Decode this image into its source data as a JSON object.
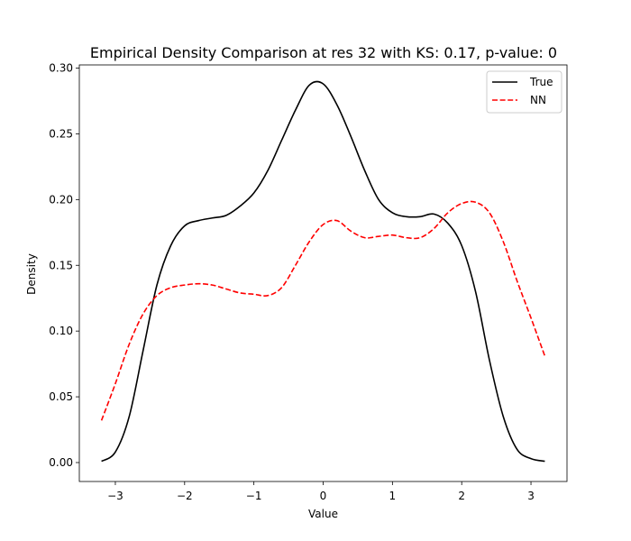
{
  "chart_data": {
    "type": "line",
    "title": "Empirical Density Comparison at res 32 with KS: 0.17, p-value: 0",
    "xlabel": "Value",
    "ylabel": "Density",
    "xlim": [
      -3.52,
      3.52
    ],
    "ylim": [
      -0.0144,
      0.3024
    ],
    "xticks": [
      -3,
      -2,
      -1,
      0,
      1,
      2,
      3
    ],
    "xtick_labels": [
      "−3",
      "−2",
      "−1",
      "0",
      "1",
      "2",
      "3"
    ],
    "yticks": [
      0.0,
      0.05,
      0.1,
      0.15,
      0.2,
      0.25,
      0.3
    ],
    "ytick_labels": [
      "0.00",
      "0.05",
      "0.10",
      "0.15",
      "0.20",
      "0.25",
      "0.30"
    ],
    "grid": false,
    "legend_position": "top-right",
    "series": [
      {
        "name": "True",
        "color": "#000000",
        "dash": "solid",
        "x": [
          -3.2,
          -3.0,
          -2.8,
          -2.6,
          -2.4,
          -2.2,
          -2.0,
          -1.8,
          -1.6,
          -1.4,
          -1.2,
          -1.0,
          -0.8,
          -0.6,
          -0.4,
          -0.2,
          0.0,
          0.2,
          0.4,
          0.6,
          0.8,
          1.0,
          1.2,
          1.4,
          1.6,
          1.8,
          2.0,
          2.2,
          2.4,
          2.6,
          2.8,
          3.0,
          3.2
        ],
        "y": [
          0.001,
          0.008,
          0.035,
          0.085,
          0.135,
          0.165,
          0.18,
          0.184,
          0.186,
          0.188,
          0.195,
          0.205,
          0.222,
          0.245,
          0.268,
          0.287,
          0.288,
          0.272,
          0.248,
          0.222,
          0.2,
          0.19,
          0.187,
          0.187,
          0.189,
          0.182,
          0.165,
          0.13,
          0.078,
          0.035,
          0.01,
          0.003,
          0.001
        ]
      },
      {
        "name": "NN",
        "color": "#ff0000",
        "dash": "dashed",
        "x": [
          -3.2,
          -3.0,
          -2.8,
          -2.6,
          -2.4,
          -2.2,
          -2.0,
          -1.8,
          -1.6,
          -1.4,
          -1.2,
          -1.0,
          -0.8,
          -0.6,
          -0.4,
          -0.2,
          0.0,
          0.2,
          0.4,
          0.6,
          0.8,
          1.0,
          1.2,
          1.4,
          1.6,
          1.8,
          2.0,
          2.2,
          2.4,
          2.6,
          2.8,
          3.0,
          3.2
        ],
        "y": [
          0.032,
          0.06,
          0.09,
          0.113,
          0.127,
          0.133,
          0.135,
          0.136,
          0.135,
          0.132,
          0.129,
          0.128,
          0.127,
          0.133,
          0.15,
          0.168,
          0.181,
          0.184,
          0.176,
          0.171,
          0.172,
          0.173,
          0.171,
          0.171,
          0.178,
          0.19,
          0.197,
          0.198,
          0.19,
          0.168,
          0.138,
          0.11,
          0.081
        ]
      }
    ]
  }
}
